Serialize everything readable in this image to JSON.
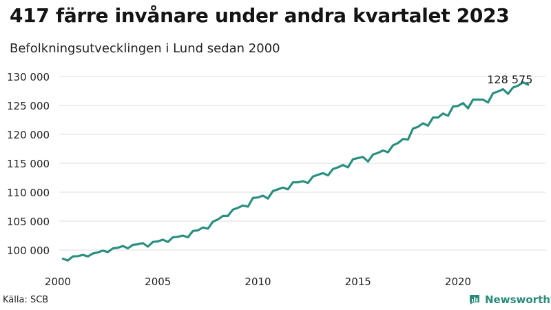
{
  "title": "417 färre invånare under andra kvartalet 2023",
  "subtitle": "Befolkningsutvecklingen i Lund sedan 2000",
  "source": "Källa: SCB",
  "brand": {
    "name": "Newsworthy",
    "color": "#2a8a7c",
    "icon": "newsworthy-logo-icon"
  },
  "chart_data": {
    "type": "line",
    "x_range": [
      2000,
      2023.5
    ],
    "ylim": [
      97500,
      131000
    ],
    "x_ticks": [
      {
        "value": 2000,
        "label": "2000"
      },
      {
        "value": 2005,
        "label": "2005"
      },
      {
        "value": 2010,
        "label": "2010"
      },
      {
        "value": 2015,
        "label": "2015"
      },
      {
        "value": 2020,
        "label": "2020"
      }
    ],
    "y_ticks": [
      {
        "value": 100000,
        "label": "100 000"
      },
      {
        "value": 105000,
        "label": "105 000"
      },
      {
        "value": 110000,
        "label": "110 000"
      },
      {
        "value": 115000,
        "label": "115 000"
      },
      {
        "value": 120000,
        "label": "120 000"
      },
      {
        "value": 125000,
        "label": "125 000"
      },
      {
        "value": 130000,
        "label": "130 000"
      }
    ],
    "grid": true,
    "line_color": "#2a8f80",
    "annotation": {
      "x": 2023.25,
      "y": 128575,
      "label": "128 575"
    },
    "series": [
      {
        "values": [
          [
            2000.25,
            98500
          ],
          [
            2000.5,
            98200
          ],
          [
            2000.75,
            98900
          ],
          [
            2001.0,
            98950
          ],
          [
            2001.25,
            99150
          ],
          [
            2001.5,
            98900
          ],
          [
            2001.75,
            99400
          ],
          [
            2002.0,
            99600
          ],
          [
            2002.25,
            99900
          ],
          [
            2002.5,
            99650
          ],
          [
            2002.75,
            100300
          ],
          [
            2003.0,
            100400
          ],
          [
            2003.25,
            100700
          ],
          [
            2003.5,
            100300
          ],
          [
            2003.75,
            100900
          ],
          [
            2004.0,
            101000
          ],
          [
            2004.25,
            101200
          ],
          [
            2004.5,
            100600
          ],
          [
            2004.75,
            101400
          ],
          [
            2005.0,
            101500
          ],
          [
            2005.25,
            101800
          ],
          [
            2005.5,
            101400
          ],
          [
            2005.75,
            102200
          ],
          [
            2006.0,
            102300
          ],
          [
            2006.25,
            102500
          ],
          [
            2006.5,
            102200
          ],
          [
            2006.75,
            103300
          ],
          [
            2007.0,
            103400
          ],
          [
            2007.25,
            103900
          ],
          [
            2007.5,
            103700
          ],
          [
            2007.75,
            104900
          ],
          [
            2008.0,
            105300
          ],
          [
            2008.25,
            105900
          ],
          [
            2008.5,
            105900
          ],
          [
            2008.75,
            107000
          ],
          [
            2009.0,
            107300
          ],
          [
            2009.25,
            107700
          ],
          [
            2009.5,
            107500
          ],
          [
            2009.75,
            109000
          ],
          [
            2010.0,
            109100
          ],
          [
            2010.25,
            109400
          ],
          [
            2010.5,
            108900
          ],
          [
            2010.75,
            110200
          ],
          [
            2011.0,
            110500
          ],
          [
            2011.25,
            110800
          ],
          [
            2011.5,
            110500
          ],
          [
            2011.75,
            111700
          ],
          [
            2012.0,
            111700
          ],
          [
            2012.25,
            111900
          ],
          [
            2012.5,
            111600
          ],
          [
            2012.75,
            112700
          ],
          [
            2013.0,
            113000
          ],
          [
            2013.25,
            113300
          ],
          [
            2013.5,
            112900
          ],
          [
            2013.75,
            114000
          ],
          [
            2014.0,
            114300
          ],
          [
            2014.25,
            114700
          ],
          [
            2014.5,
            114300
          ],
          [
            2014.75,
            115700
          ],
          [
            2015.0,
            115900
          ],
          [
            2015.25,
            116100
          ],
          [
            2015.5,
            115300
          ],
          [
            2015.75,
            116500
          ],
          [
            2016.0,
            116800
          ],
          [
            2016.25,
            117200
          ],
          [
            2016.5,
            116900
          ],
          [
            2016.75,
            118100
          ],
          [
            2017.0,
            118500
          ],
          [
            2017.25,
            119200
          ],
          [
            2017.5,
            119100
          ],
          [
            2017.75,
            121000
          ],
          [
            2018.0,
            121300
          ],
          [
            2018.25,
            121900
          ],
          [
            2018.5,
            121500
          ],
          [
            2018.75,
            122900
          ],
          [
            2019.0,
            122900
          ],
          [
            2019.25,
            123600
          ],
          [
            2019.5,
            123200
          ],
          [
            2019.75,
            124800
          ],
          [
            2020.0,
            124900
          ],
          [
            2020.25,
            125400
          ],
          [
            2020.5,
            124500
          ],
          [
            2020.75,
            126000
          ],
          [
            2021.0,
            126000
          ],
          [
            2021.25,
            126000
          ],
          [
            2021.5,
            125500
          ],
          [
            2021.75,
            127100
          ],
          [
            2022.0,
            127400
          ],
          [
            2022.25,
            127800
          ],
          [
            2022.5,
            127000
          ],
          [
            2022.75,
            128100
          ],
          [
            2023.0,
            128400
          ],
          [
            2023.25,
            128992
          ],
          [
            2023.5,
            128575
          ]
        ]
      }
    ]
  }
}
